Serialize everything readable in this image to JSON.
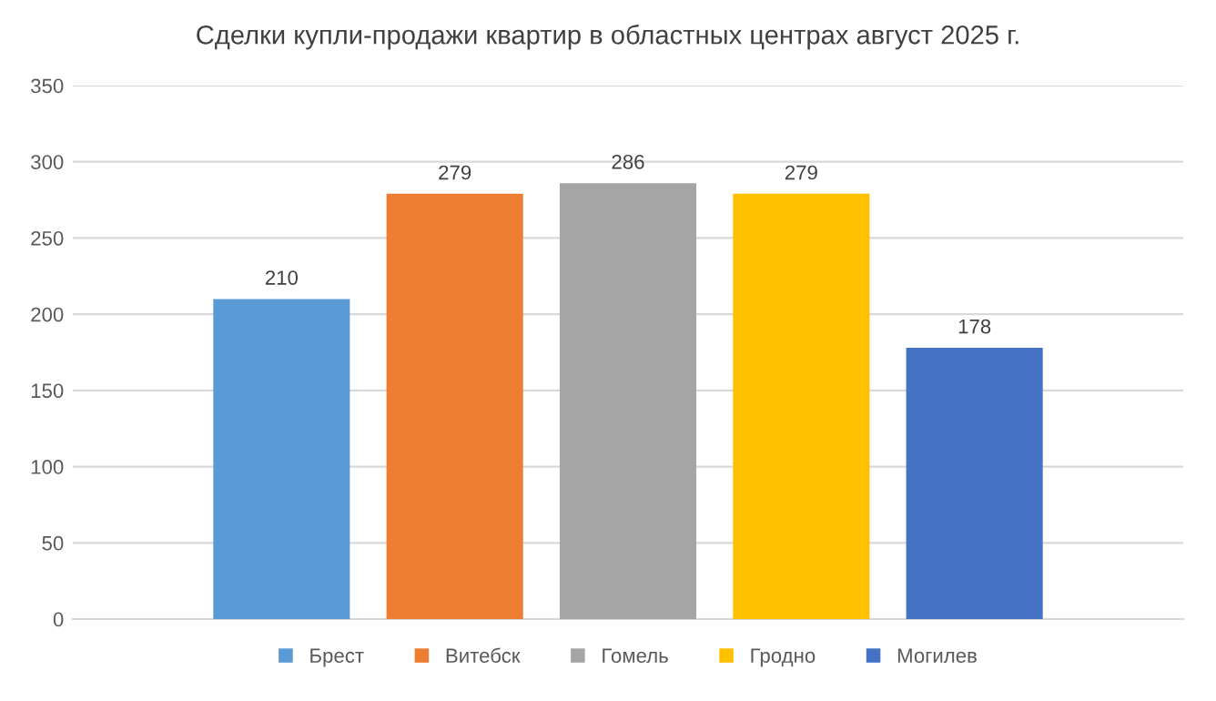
{
  "chart_data": {
    "type": "bar",
    "title": "Сделки купли-продажи квартир в областных центрах август 2025 г.",
    "categories": [
      null
    ],
    "series": [
      {
        "name": "Брест",
        "color": "#5b9bd5",
        "values": [
          210
        ]
      },
      {
        "name": "Витебск",
        "color": "#ed7d31",
        "values": [
          279
        ]
      },
      {
        "name": "Гомель",
        "color": "#a5a5a5",
        "values": [
          286
        ]
      },
      {
        "name": "Гродно",
        "color": "#ffc000",
        "values": [
          279
        ]
      },
      {
        "name": "Могилев",
        "color": "#4472c4",
        "values": [
          178
        ]
      }
    ],
    "ylim": [
      0,
      350
    ],
    "yticks": [
      0,
      50,
      100,
      150,
      200,
      250,
      300,
      350
    ],
    "grid": "y",
    "data_labels": true,
    "legend": "bottom"
  }
}
